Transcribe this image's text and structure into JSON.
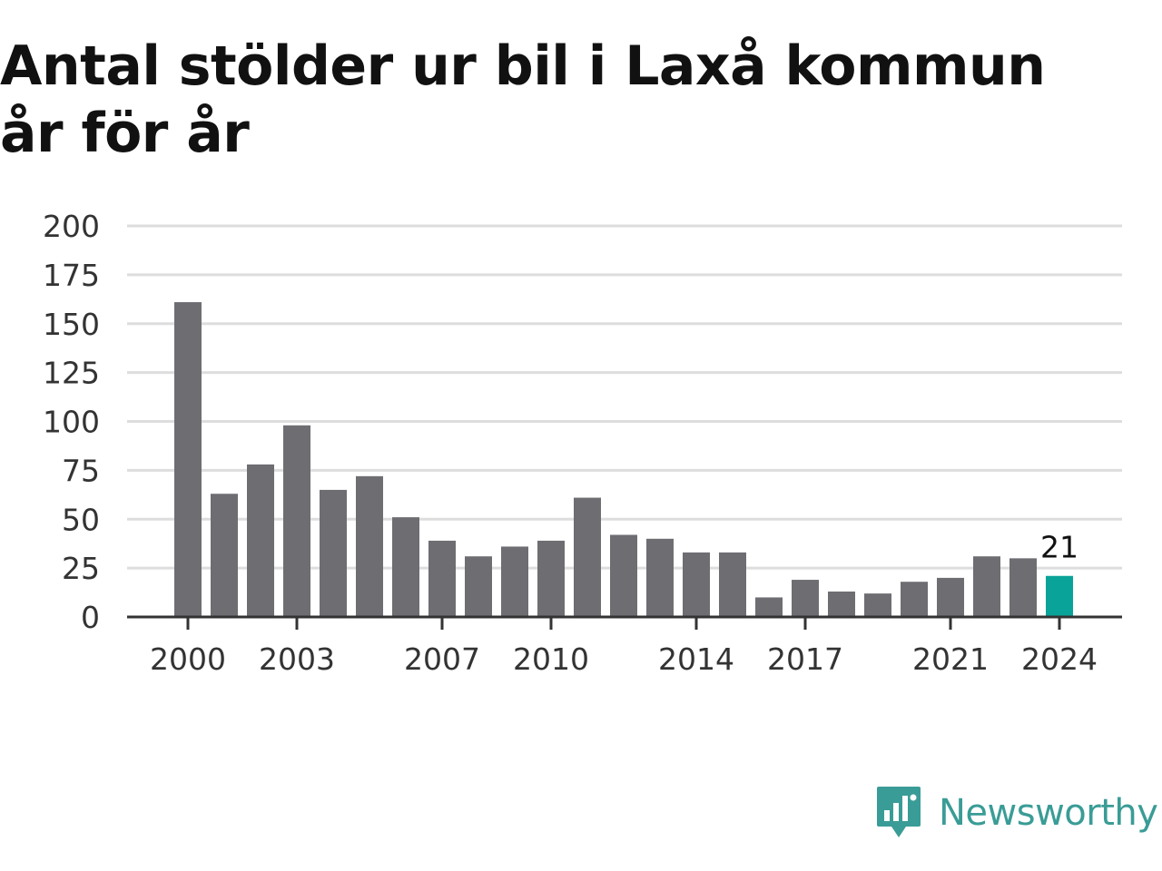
{
  "chart_data": {
    "type": "bar",
    "title": "Antal stölder ur bil i Laxå kommun år för år",
    "xlabel": "",
    "ylabel": "",
    "ylim": [
      0,
      200
    ],
    "yticks": [
      0,
      25,
      50,
      75,
      100,
      125,
      150,
      175,
      200
    ],
    "xtick_labels": [
      "2000",
      "2003",
      "2007",
      "2010",
      "2014",
      "2017",
      "2021",
      "2024"
    ],
    "grid": true,
    "categories": [
      "2000",
      "2001",
      "2002",
      "2003",
      "2004",
      "2005",
      "2006",
      "2007",
      "2008",
      "2009",
      "2010",
      "2011",
      "2012",
      "2013",
      "2014",
      "2015",
      "2016",
      "2017",
      "2018",
      "2019",
      "2020",
      "2021",
      "2022",
      "2023",
      "2024"
    ],
    "values": [
      161,
      63,
      78,
      98,
      65,
      72,
      51,
      39,
      31,
      36,
      39,
      61,
      42,
      40,
      33,
      33,
      10,
      19,
      13,
      12,
      18,
      20,
      31,
      30,
      21
    ],
    "highlight": {
      "category": "2024",
      "value_label": "21"
    },
    "colors": {
      "bar": "#6e6d72",
      "highlight": "#0aa39a",
      "grid": "#dddddd",
      "axis": "#333333"
    }
  },
  "brand": {
    "name": "Newsworthy",
    "logo_icon": "chart-bubble-icon",
    "color": "#3a9c96"
  }
}
